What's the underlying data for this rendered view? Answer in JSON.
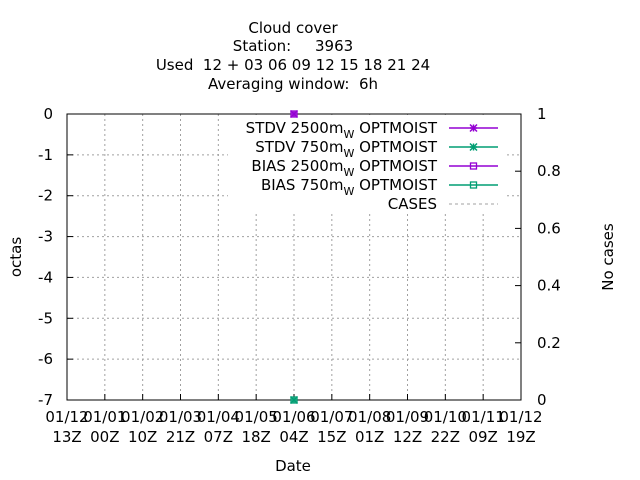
{
  "title": {
    "line1": "Cloud cover",
    "line2": "Station:     3963",
    "line3": "Used  12 + 03 06 09 12 15 18 21 24",
    "line4": "Averaging window:  6h"
  },
  "chart_data": {
    "type": "line",
    "xlabel": "Date",
    "ylabel": "octas",
    "y2label": "No cases",
    "ylim": [
      -7,
      0
    ],
    "y2lim": [
      0,
      1
    ],
    "yticks": [
      "0",
      "-1",
      "-2",
      "-3",
      "-4",
      "-5",
      "-6",
      "-7"
    ],
    "y2ticks": [
      "1",
      "0.8",
      "0.6",
      "0.4",
      "0.2",
      "0"
    ],
    "xticks": [
      {
        "top": "01/12",
        "bottom": "13Z"
      },
      {
        "top": "01/01",
        "bottom": "00Z"
      },
      {
        "top": "01/02",
        "bottom": "10Z"
      },
      {
        "top": "01/03",
        "bottom": "21Z"
      },
      {
        "top": "01/04",
        "bottom": "07Z"
      },
      {
        "top": "01/05",
        "bottom": "18Z"
      },
      {
        "top": "01/06",
        "bottom": "04Z"
      },
      {
        "top": "01/07",
        "bottom": "15Z"
      },
      {
        "top": "01/08",
        "bottom": "01Z"
      },
      {
        "top": "01/09",
        "bottom": "12Z"
      },
      {
        "top": "01/10",
        "bottom": "22Z"
      },
      {
        "top": "01/11",
        "bottom": "09Z"
      },
      {
        "top": "01/12",
        "bottom": "19Z"
      }
    ],
    "grid": true,
    "legend_position": "top-right",
    "series": [
      {
        "name": "STDV 2500m",
        "sub": "W",
        "suffix": " OPTMOIST",
        "color": "#9400d3",
        "marker": "x",
        "dash": false,
        "points": [
          {
            "x": "01/06 04Z",
            "y": 0
          }
        ]
      },
      {
        "name": "STDV 750m",
        "sub": "W",
        "suffix": " OPTMOIST",
        "color": "#009e73",
        "marker": "x",
        "dash": false,
        "points": [
          {
            "x": "01/06 04Z",
            "y": -7
          }
        ]
      },
      {
        "name": "BIAS 2500m",
        "sub": "W",
        "suffix": " OPTMOIST",
        "color": "#9400d3",
        "marker": "square",
        "dash": false,
        "points": [
          {
            "x": "01/06 04Z",
            "y": 0
          }
        ]
      },
      {
        "name": "BIAS 750m",
        "sub": "W",
        "suffix": " OPTMOIST",
        "color": "#009e73",
        "marker": "square",
        "dash": false,
        "points": [
          {
            "x": "01/06 04Z",
            "y": -7
          }
        ]
      },
      {
        "name": "CASES",
        "sub": "",
        "suffix": "",
        "color": "#a0a0a0",
        "marker": "none",
        "dash": true,
        "points": []
      }
    ]
  }
}
